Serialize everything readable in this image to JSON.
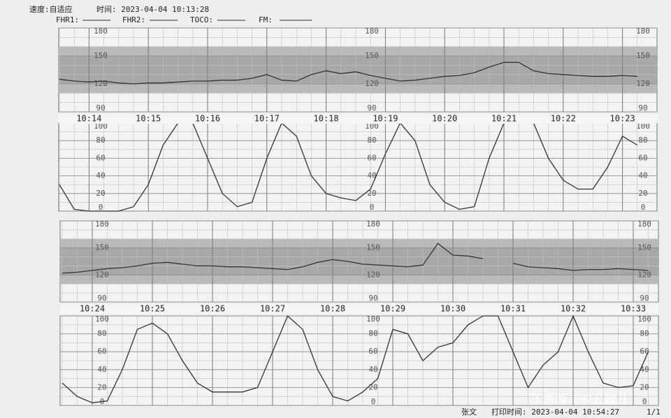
{
  "header": {
    "speed": "速度:自适应",
    "time": "时间: 2023-04-04 10:13:28",
    "legend": [
      "FHR1:",
      "FHR2:",
      "TOCO:",
      "FM:"
    ]
  },
  "chart_data": [
    {
      "type": "line",
      "categories": [
        null,
        null,
        "10:14",
        null,
        null,
        null,
        "10:15",
        null,
        null,
        null,
        "10:16",
        null,
        null,
        null,
        "10:17",
        null,
        null,
        null,
        "10:18",
        null,
        null,
        null,
        "10:19",
        null,
        null,
        null,
        "10:20",
        null,
        null,
        null,
        "10:21",
        null,
        null,
        null,
        "10:22",
        null,
        null,
        null,
        "10:23",
        null
      ],
      "panels": [
        {
          "color": "#333333",
          "ylim": [
            90,
            180
          ],
          "yticks": [
            90,
            120,
            150,
            180
          ],
          "values": [
            125,
            123,
            122,
            123,
            121,
            120,
            121,
            121,
            122,
            123,
            123,
            124,
            124,
            126,
            130,
            124,
            123,
            130,
            134,
            131,
            133,
            129,
            126,
            123,
            124,
            126,
            128,
            129,
            132,
            138,
            143,
            143,
            134,
            131,
            130,
            129,
            128,
            128,
            129,
            128
          ]
        },
        {
          "color": "#333333",
          "ylim": [
            0,
            100
          ],
          "yticks": [
            0,
            20,
            40,
            60,
            80,
            100
          ],
          "values": [
            30,
            2,
            0,
            0,
            0,
            5,
            30,
            75,
            100,
            100,
            60,
            20,
            5,
            10,
            60,
            100,
            85,
            40,
            20,
            15,
            12,
            25,
            65,
            100,
            80,
            30,
            10,
            2,
            5,
            60,
            100,
            100,
            100,
            60,
            35,
            25,
            25,
            50,
            85,
            75
          ]
        }
      ]
    },
    {
      "type": "line",
      "categories": [
        null,
        null,
        "10:24",
        null,
        null,
        null,
        "10:25",
        null,
        null,
        null,
        "10:26",
        null,
        null,
        null,
        "10:27",
        null,
        null,
        null,
        "10:28",
        null,
        null,
        null,
        "10:29",
        null,
        null,
        null,
        "10:30",
        null,
        null,
        null,
        "10:31",
        null,
        null,
        null,
        "10:32",
        null,
        null,
        null,
        "10:33",
        null
      ],
      "panels": [
        {
          "color": "#333333",
          "ylim": [
            90,
            180
          ],
          "yticks": [
            90,
            120,
            150,
            180
          ],
          "values": [
            122,
            123,
            125,
            127,
            128,
            130,
            133,
            134,
            132,
            130,
            130,
            129,
            129,
            128,
            127,
            126,
            129,
            134,
            137,
            135,
            132,
            131,
            130,
            129,
            131,
            155,
            142,
            141,
            138,
            null,
            133,
            129,
            128,
            127,
            125,
            126,
            126,
            127,
            126,
            125
          ]
        },
        {
          "color": "#333333",
          "ylim": [
            0,
            100
          ],
          "yticks": [
            0,
            20,
            40,
            60,
            80,
            100
          ],
          "values": [
            25,
            10,
            3,
            5,
            40,
            85,
            92,
            80,
            50,
            25,
            15,
            15,
            15,
            20,
            60,
            100,
            85,
            40,
            10,
            5,
            15,
            30,
            85,
            80,
            50,
            65,
            70,
            90,
            100,
            100,
            60,
            20,
            45,
            60,
            100,
            60,
            25,
            20,
            22,
            60
          ]
        }
      ]
    }
  ],
  "footer": {
    "name": "张文",
    "print_time": "打印时间: 2023-04-04 10:54:27",
    "page": "1/1",
    "watermark": "丁香园 @皎儿皎儿"
  }
}
